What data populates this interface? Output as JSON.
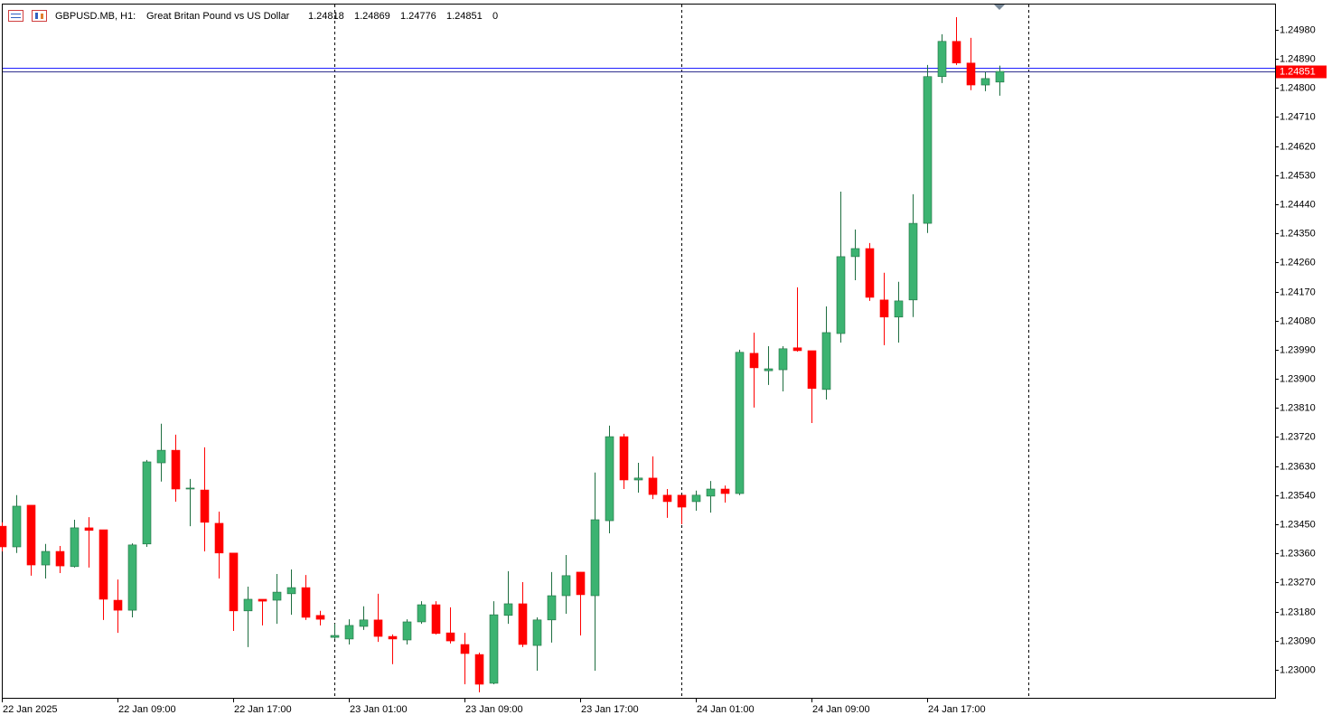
{
  "chart_data": {
    "type": "candlestick",
    "title": "GBPUSD.MB, H1:",
    "subtitle": "Great Britan Pound vs US Dollar",
    "volume": 0,
    "categories": [
      "22 Jan 2025",
      null,
      null,
      null,
      null,
      null,
      null,
      null,
      "22 Jan 09:00",
      null,
      null,
      null,
      null,
      null,
      null,
      null,
      "22 Jan 17:00",
      null,
      null,
      null,
      null,
      null,
      null,
      null,
      "23 Jan 01:00",
      null,
      null,
      null,
      null,
      null,
      null,
      null,
      "23 Jan 09:00",
      null,
      null,
      null,
      null,
      null,
      null,
      null,
      "23 Jan 17:00",
      null,
      null,
      null,
      null,
      null,
      null,
      null,
      "24 Jan 01:00",
      null,
      null,
      null,
      null,
      null,
      null,
      null,
      "24 Jan 09:00",
      null,
      null,
      null,
      null,
      null,
      null,
      null,
      "24 Jan 17:00",
      null,
      null,
      null,
      null,
      null
    ],
    "open": [
      1.23444,
      1.2338,
      1.23509,
      1.23324,
      1.23366,
      1.23319,
      1.23439,
      1.23433,
      1.23215,
      1.23184,
      1.23389,
      1.2364,
      1.23679,
      1.23559,
      1.23556,
      1.23453,
      1.23361,
      1.23182,
      1.23218,
      1.23215,
      1.23235,
      1.23254,
      1.23168,
      1.231,
      1.23095,
      1.23134,
      1.23154,
      1.23103,
      1.23092,
      1.23148,
      1.23201,
      1.23114,
      1.23078,
      1.23047,
      1.22958,
      1.23168,
      1.23204,
      1.23075,
      1.23154,
      1.23229,
      1.23302,
      1.23229,
      1.23461,
      1.23721,
      1.23587,
      1.23593,
      1.2354,
      1.2354,
      1.2352,
      1.23537,
      1.23559,
      1.23545,
      1.23979,
      1.23925,
      1.23928,
      1.23996,
      1.23987,
      1.23867,
      1.2404,
      1.24278,
      1.24303,
      1.24144,
      1.24091,
      1.24144,
      1.24381,
      1.24835,
      1.24944,
      1.24877,
      1.24809,
      1.24818
    ],
    "high": [
      1.23456,
      1.2354,
      1.23509,
      1.23389,
      1.23383,
      1.23464,
      1.23472,
      1.23433,
      1.23279,
      1.23391,
      1.23649,
      1.23761,
      1.23727,
      1.2359,
      1.23688,
      1.23489,
      1.23361,
      1.23257,
      1.23218,
      1.23296,
      1.2331,
      1.23293,
      1.23182,
      1.23142,
      1.23156,
      1.23196,
      1.23235,
      1.23109,
      1.23156,
      1.23212,
      1.23212,
      1.23193,
      1.23114,
      1.23053,
      1.23212,
      1.23305,
      1.23271,
      1.23162,
      1.23302,
      1.23355,
      1.23302,
      1.2361,
      1.23755,
      1.2373,
      1.2364,
      1.2366,
      1.23559,
      1.2354,
      1.23554,
      1.23584,
      1.2357,
      1.2399,
      1.24043,
      1.24001,
      1.24001,
      1.24183,
      1.23987,
      1.24124,
      1.24479,
      1.24362,
      1.2432,
      1.24228,
      1.242,
      1.24471,
      1.24871,
      1.24966,
      1.25019,
      1.24955,
      1.24849,
      1.24869
    ],
    "low": [
      1.23366,
      1.23361,
      1.23291,
      1.23282,
      1.23299,
      1.23316,
      1.23316,
      1.23154,
      1.23114,
      1.23162,
      1.2338,
      1.23582,
      1.2352,
      1.23444,
      1.23366,
      1.23282,
      1.2312,
      1.2307,
      1.23137,
      1.23142,
      1.2317,
      1.23154,
      1.23137,
      1.23095,
      1.23078,
      1.23123,
      1.23086,
      1.23017,
      1.23078,
      1.23142,
      1.23109,
      1.23081,
      1.22955,
      1.2293,
      1.22955,
      1.23142,
      1.2307,
      1.22997,
      1.23084,
      1.23173,
      1.23106,
      1.22997,
      1.23422,
      1.23559,
      1.23548,
      1.23528,
      1.2347,
      1.2345,
      1.23492,
      1.23486,
      1.23517,
      1.2354,
      1.23811,
      1.23881,
      1.23861,
      1.23984,
      1.23763,
      1.23836,
      1.24012,
      1.24205,
      1.24141,
      1.24004,
      1.24012,
      1.24091,
      1.24351,
      1.24815,
      1.24871,
      1.24793,
      1.2479,
      1.24776
    ],
    "close": [
      1.2338,
      1.23506,
      1.23324,
      1.23366,
      1.23321,
      1.23439,
      1.23431,
      1.23218,
      1.23184,
      1.23386,
      1.23643,
      1.23679,
      1.23559,
      1.23562,
      1.23456,
      1.23361,
      1.23182,
      1.23218,
      1.23212,
      1.2324,
      1.23254,
      1.23162,
      1.23156,
      1.23106,
      1.23137,
      1.23154,
      1.23103,
      1.23095,
      1.23148,
      1.23201,
      1.23112,
      1.23089,
      1.2305,
      1.22955,
      1.2317,
      1.23204,
      1.23078,
      1.23154,
      1.23229,
      1.23291,
      1.23232,
      1.23464,
      1.23721,
      1.23587,
      1.23593,
      1.23542,
      1.2352,
      1.23503,
      1.2354,
      1.23559,
      1.23545,
      1.23982,
      1.23934,
      1.23931,
      1.23993,
      1.23987,
      1.2387,
      1.24043,
      1.24278,
      1.24303,
      1.24152,
      1.24091,
      1.24141,
      1.24381,
      1.24835,
      1.24944,
      1.24877,
      1.24809,
      1.24829,
      1.24851
    ],
    "up_color": "#3cb371",
    "down_color": "#ff0000",
    "bid_line": 1.24851,
    "ask_line": 1.24863,
    "ylim": [
      1.22913,
      1.25058
    ],
    "yticks": [
      {
        "value": 1.2498,
        "label": "1.24980"
      },
      {
        "value": 1.2489,
        "label": "1.24890"
      },
      {
        "value": 1.248,
        "label": "1.24800"
      },
      {
        "value": 1.2471,
        "label": "1.24710"
      },
      {
        "value": 1.2462,
        "label": "1.24620"
      },
      {
        "value": 1.2453,
        "label": "1.24530"
      },
      {
        "value": 1.2444,
        "label": "1.24440"
      },
      {
        "value": 1.2435,
        "label": "1.24350"
      },
      {
        "value": 1.2426,
        "label": "1.24260"
      },
      {
        "value": 1.2417,
        "label": "1.24170"
      },
      {
        "value": 1.2408,
        "label": "1.24080"
      },
      {
        "value": 1.2399,
        "label": "1.23990"
      },
      {
        "value": 1.239,
        "label": "1.23900"
      },
      {
        "value": 1.2381,
        "label": "1.23810"
      },
      {
        "value": 1.2372,
        "label": "1.23720"
      },
      {
        "value": 1.2363,
        "label": "1.23630"
      },
      {
        "value": 1.2354,
        "label": "1.23540"
      },
      {
        "value": 1.2345,
        "label": "1.23450"
      },
      {
        "value": 1.2336,
        "label": "1.23360"
      },
      {
        "value": 1.2327,
        "label": "1.23270"
      },
      {
        "value": 1.2318,
        "label": "1.23180"
      },
      {
        "value": 1.2309,
        "label": "1.23090"
      },
      {
        "value": 1.23,
        "label": "1.23000"
      }
    ],
    "grid": false
  }
}
